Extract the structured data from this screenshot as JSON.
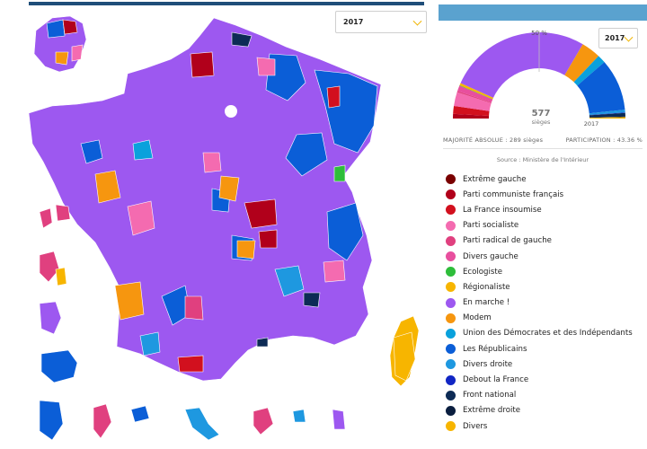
{
  "map": {
    "year_select": {
      "value": "2017"
    },
    "colors": {
      "en_marche": "#9d58f0",
      "republicains": "#0b5ed7",
      "divers_droite": "#1e98e0",
      "udi": "#0aa1dc",
      "ps": "#f46bb0",
      "radical": "#e0407f",
      "modem": "#f6960f",
      "pcf": "#b1001b",
      "fi": "#d2101e",
      "ecologiste": "#2ebd3a",
      "regionaliste": "#f7b500",
      "fn": "#0d2b55",
      "extreme_gauche": "#7a0000"
    }
  },
  "chart": {
    "year_select": {
      "value": "2017"
    },
    "center_label": "50 %",
    "seats": "577",
    "seats_label": "sièges",
    "year": "2017",
    "majority": "MAJORITÉ ABSOLUE : 289 sièges",
    "participation": "PARTICIPATION : 43.36 %",
    "source": "Source : Ministère de l'Intérieur"
  },
  "chart_data": {
    "type": "pie",
    "title": "",
    "categories": [
      "Extrême gauche",
      "Parti communiste français",
      "La France insoumise",
      "Parti socialiste",
      "Parti radical de gauche",
      "Divers gauche",
      "Ecologiste",
      "Régionaliste",
      "En marche !",
      "Modem",
      "Union des Démocrates et des Indépendants",
      "Les Républicains",
      "Divers droite",
      "Debout la France",
      "Front national",
      "Extrême droite",
      "Divers"
    ],
    "values": [
      0,
      10,
      17,
      30,
      3,
      12,
      1,
      5,
      308,
      42,
      18,
      112,
      6,
      1,
      8,
      1,
      3
    ],
    "units": "seats",
    "total": 577,
    "half_donut": true
  },
  "legend": [
    {
      "label": "Extrême gauche",
      "color": "#7a0000"
    },
    {
      "label": "Parti communiste français",
      "color": "#b1001b"
    },
    {
      "label": "La France insoumise",
      "color": "#d2101e"
    },
    {
      "label": "Parti socialiste",
      "color": "#f46bb0"
    },
    {
      "label": "Parti radical de gauche",
      "color": "#e0407f"
    },
    {
      "label": "Divers gauche",
      "color": "#e84f9e"
    },
    {
      "label": "Ecologiste",
      "color": "#2ebd3a"
    },
    {
      "label": "Régionaliste",
      "color": "#f7b500"
    },
    {
      "label": "En marche !",
      "color": "#9d58f0"
    },
    {
      "label": "Modem",
      "color": "#f6960f"
    },
    {
      "label": "Union des Démocrates et des Indépendants",
      "color": "#0aa1dc"
    },
    {
      "label": "Les Républicains",
      "color": "#0b5ed7"
    },
    {
      "label": "Divers droite",
      "color": "#1e98e0"
    },
    {
      "label": "Debout la France",
      "color": "#1126c4"
    },
    {
      "label": "Front national",
      "color": "#0d2b55"
    },
    {
      "label": "Extrême droite",
      "color": "#0a1e3f"
    },
    {
      "label": "Divers",
      "color": "#f7b500"
    }
  ]
}
